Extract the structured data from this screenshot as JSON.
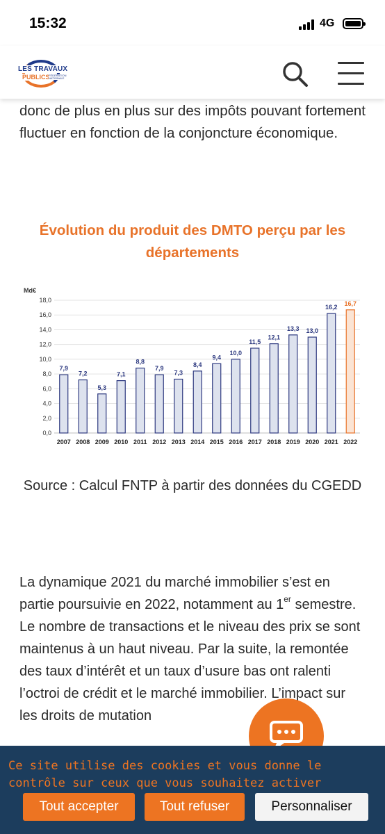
{
  "status_bar": {
    "time": "15:32",
    "network": "4G"
  },
  "header": {
    "logo_line1": "LES TRAVAUX",
    "logo_line2": "PUBLICS",
    "logo_line3": "FÉDÉRATION NATIONALE",
    "search_icon": "search-icon",
    "menu_icon": "hamburger-menu-icon"
  },
  "article": {
    "para_top": "donc de plus en plus sur des impôts pouvant fortement fluctuer en fonction de la conjoncture économique.",
    "chart_title": "Évolution du produit des DMTO perçu par les départements",
    "source": "Source : Calcul FNTP à partir des données du CGEDD",
    "para_main_a": "La dynamique 2021 du marché immobilier s’est en partie poursuivie en 2022, notamment au 1",
    "para_main_sup": "er",
    "para_main_b": " semestre.  Le nombre de transactions et le niveau des prix se sont maintenus à un haut niveau. Par la suite, la remontée des taux d’intérêt et un taux d’usure bas ont ralenti l’octroi de crédit et le marché immobilier. L’impact sur les droits de mutation"
  },
  "chart_data": {
    "type": "bar",
    "ylabel": "Md€",
    "ylim": [
      0,
      18
    ],
    "yticks": [
      "0,0",
      "2,0",
      "4,0",
      "6,0",
      "8,0",
      "10,0",
      "12,0",
      "14,0",
      "16,0",
      "18,0"
    ],
    "categories": [
      "2007",
      "2008",
      "2009",
      "2010",
      "2011",
      "2012",
      "2013",
      "2014",
      "2015",
      "2016",
      "2017",
      "2018",
      "2019",
      "2020",
      "2021",
      "2022"
    ],
    "values": [
      7.9,
      7.2,
      5.3,
      7.1,
      8.8,
      7.9,
      7.3,
      8.4,
      9.4,
      10.0,
      11.5,
      12.1,
      13.3,
      13.0,
      16.2,
      16.7
    ],
    "labels": [
      "7,9",
      "7,2",
      "5,3",
      "7,1",
      "8,8",
      "7,9",
      "7,3",
      "8,4",
      "9,4",
      "10,0",
      "11,5",
      "12,1",
      "13,3",
      "13,0",
      "16,2",
      "16,7"
    ],
    "bar_color": "#dde2ee",
    "bar_border": "#2e3a80",
    "highlight_index": 15,
    "highlight_color": "#fbe4d4",
    "highlight_border": "#e8732a",
    "label_color": "#2e3a80",
    "grid": true
  },
  "chat": {
    "icon": "chat-bubble-icon"
  },
  "cookie": {
    "text": "Ce site utilise des cookies et vous donne le contrôle sur ceux que vous souhaitez activer",
    "accept": "Tout accepter",
    "refuse": "Tout refuser",
    "customize": "Personnaliser"
  },
  "colors": {
    "accent": "#ed7422",
    "navy": "#1c3d5d"
  }
}
